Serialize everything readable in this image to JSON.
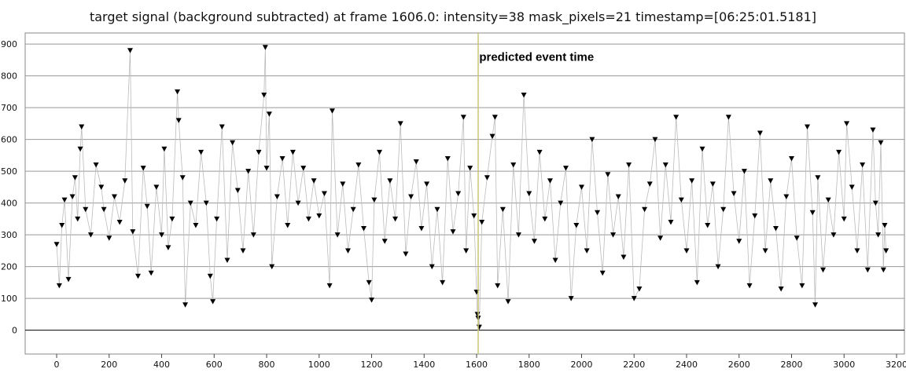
{
  "chart_data": {
    "type": "scatter",
    "title": "target signal (background subtracted) at frame 1606.0: intensity=38 mask_pixels=21 timestamp=[06:25:01.5181]",
    "xlabel": "",
    "ylabel": "",
    "xlim": [
      -120,
      3230
    ],
    "ylim": [
      -75,
      935
    ],
    "xticks": [
      0,
      200,
      400,
      600,
      800,
      1000,
      1200,
      1400,
      1600,
      1800,
      2000,
      2200,
      2400,
      2600,
      2800,
      3000,
      3200
    ],
    "yticks": [
      0,
      100,
      200,
      300,
      400,
      500,
      600,
      700,
      800,
      900
    ],
    "grid": "horizontal",
    "marker": "down-triangle",
    "series": [
      {
        "name": "",
        "points": [
          [
            0,
            270
          ],
          [
            10,
            140
          ],
          [
            20,
            330
          ],
          [
            30,
            410
          ],
          [
            45,
            160
          ],
          [
            60,
            420
          ],
          [
            70,
            480
          ],
          [
            80,
            350
          ],
          [
            90,
            570
          ],
          [
            95,
            640
          ],
          [
            110,
            380
          ],
          [
            130,
            300
          ],
          [
            150,
            520
          ],
          [
            170,
            450
          ],
          [
            180,
            380
          ],
          [
            200,
            290
          ],
          [
            220,
            420
          ],
          [
            240,
            340
          ],
          [
            260,
            470
          ],
          [
            280,
            880
          ],
          [
            290,
            310
          ],
          [
            310,
            170
          ],
          [
            330,
            510
          ],
          [
            345,
            390
          ],
          [
            360,
            180
          ],
          [
            380,
            450
          ],
          [
            400,
            300
          ],
          [
            410,
            570
          ],
          [
            425,
            260
          ],
          [
            440,
            350
          ],
          [
            460,
            750
          ],
          [
            465,
            660
          ],
          [
            480,
            480
          ],
          [
            490,
            80
          ],
          [
            510,
            400
          ],
          [
            530,
            330
          ],
          [
            550,
            560
          ],
          [
            570,
            400
          ],
          [
            585,
            170
          ],
          [
            595,
            90
          ],
          [
            610,
            350
          ],
          [
            630,
            640
          ],
          [
            650,
            220
          ],
          [
            670,
            590
          ],
          [
            690,
            440
          ],
          [
            710,
            250
          ],
          [
            730,
            500
          ],
          [
            750,
            300
          ],
          [
            770,
            560
          ],
          [
            790,
            740
          ],
          [
            795,
            890
          ],
          [
            800,
            510
          ],
          [
            810,
            680
          ],
          [
            820,
            200
          ],
          [
            840,
            420
          ],
          [
            860,
            540
          ],
          [
            880,
            330
          ],
          [
            900,
            560
          ],
          [
            920,
            400
          ],
          [
            940,
            510
          ],
          [
            960,
            350
          ],
          [
            980,
            470
          ],
          [
            1000,
            360
          ],
          [
            1020,
            430
          ],
          [
            1040,
            140
          ],
          [
            1050,
            690
          ],
          [
            1070,
            300
          ],
          [
            1090,
            460
          ],
          [
            1110,
            250
          ],
          [
            1130,
            380
          ],
          [
            1150,
            520
          ],
          [
            1170,
            320
          ],
          [
            1190,
            150
          ],
          [
            1200,
            95
          ],
          [
            1210,
            410
          ],
          [
            1230,
            560
          ],
          [
            1250,
            280
          ],
          [
            1270,
            470
          ],
          [
            1290,
            350
          ],
          [
            1310,
            650
          ],
          [
            1330,
            240
          ],
          [
            1350,
            420
          ],
          [
            1370,
            530
          ],
          [
            1390,
            320
          ],
          [
            1410,
            460
          ],
          [
            1430,
            200
          ],
          [
            1450,
            380
          ],
          [
            1470,
            150
          ],
          [
            1490,
            540
          ],
          [
            1510,
            310
          ],
          [
            1530,
            430
          ],
          [
            1550,
            670
          ],
          [
            1560,
            250
          ],
          [
            1575,
            510
          ],
          [
            1590,
            360
          ],
          [
            1600,
            120
          ],
          [
            1603,
            50
          ],
          [
            1606,
            38
          ],
          [
            1610,
            10
          ],
          [
            1620,
            340
          ],
          [
            1640,
            480
          ],
          [
            1660,
            610
          ],
          [
            1670,
            670
          ],
          [
            1680,
            140
          ],
          [
            1700,
            380
          ],
          [
            1720,
            90
          ],
          [
            1740,
            520
          ],
          [
            1760,
            300
          ],
          [
            1780,
            740
          ],
          [
            1800,
            430
          ],
          [
            1820,
            280
          ],
          [
            1840,
            560
          ],
          [
            1860,
            350
          ],
          [
            1880,
            470
          ],
          [
            1900,
            220
          ],
          [
            1920,
            400
          ],
          [
            1940,
            510
          ],
          [
            1960,
            100
          ],
          [
            1980,
            330
          ],
          [
            2000,
            450
          ],
          [
            2020,
            250
          ],
          [
            2040,
            600
          ],
          [
            2060,
            370
          ],
          [
            2080,
            180
          ],
          [
            2100,
            490
          ],
          [
            2120,
            300
          ],
          [
            2140,
            420
          ],
          [
            2160,
            230
          ],
          [
            2180,
            520
          ],
          [
            2200,
            100
          ],
          [
            2220,
            130
          ],
          [
            2240,
            380
          ],
          [
            2260,
            460
          ],
          [
            2280,
            600
          ],
          [
            2300,
            290
          ],
          [
            2320,
            520
          ],
          [
            2340,
            340
          ],
          [
            2360,
            670
          ],
          [
            2380,
            410
          ],
          [
            2400,
            250
          ],
          [
            2420,
            470
          ],
          [
            2440,
            150
          ],
          [
            2460,
            570
          ],
          [
            2480,
            330
          ],
          [
            2500,
            460
          ],
          [
            2520,
            200
          ],
          [
            2540,
            380
          ],
          [
            2560,
            670
          ],
          [
            2580,
            430
          ],
          [
            2600,
            280
          ],
          [
            2620,
            500
          ],
          [
            2640,
            140
          ],
          [
            2660,
            360
          ],
          [
            2680,
            620
          ],
          [
            2700,
            250
          ],
          [
            2720,
            470
          ],
          [
            2740,
            320
          ],
          [
            2760,
            130
          ],
          [
            2780,
            420
          ],
          [
            2800,
            540
          ],
          [
            2820,
            290
          ],
          [
            2840,
            140
          ],
          [
            2860,
            640
          ],
          [
            2880,
            370
          ],
          [
            2890,
            80
          ],
          [
            2900,
            480
          ],
          [
            2920,
            190
          ],
          [
            2940,
            410
          ],
          [
            2960,
            300
          ],
          [
            2980,
            560
          ],
          [
            3000,
            350
          ],
          [
            3010,
            650
          ],
          [
            3030,
            450
          ],
          [
            3050,
            250
          ],
          [
            3070,
            520
          ],
          [
            3090,
            190
          ],
          [
            3110,
            630
          ],
          [
            3120,
            400
          ],
          [
            3130,
            300
          ],
          [
            3140,
            590
          ],
          [
            3150,
            190
          ],
          [
            3155,
            330
          ],
          [
            3160,
            250
          ]
        ]
      }
    ],
    "vline": {
      "x": 1606,
      "color": "#c8c878"
    },
    "annotation": {
      "text": "predicted event time",
      "x": 1610,
      "y": 860
    },
    "colors": {
      "marker": "#000000",
      "connector": "#bbbbbb",
      "grid": "#999999",
      "zero_line": "#000000"
    }
  }
}
